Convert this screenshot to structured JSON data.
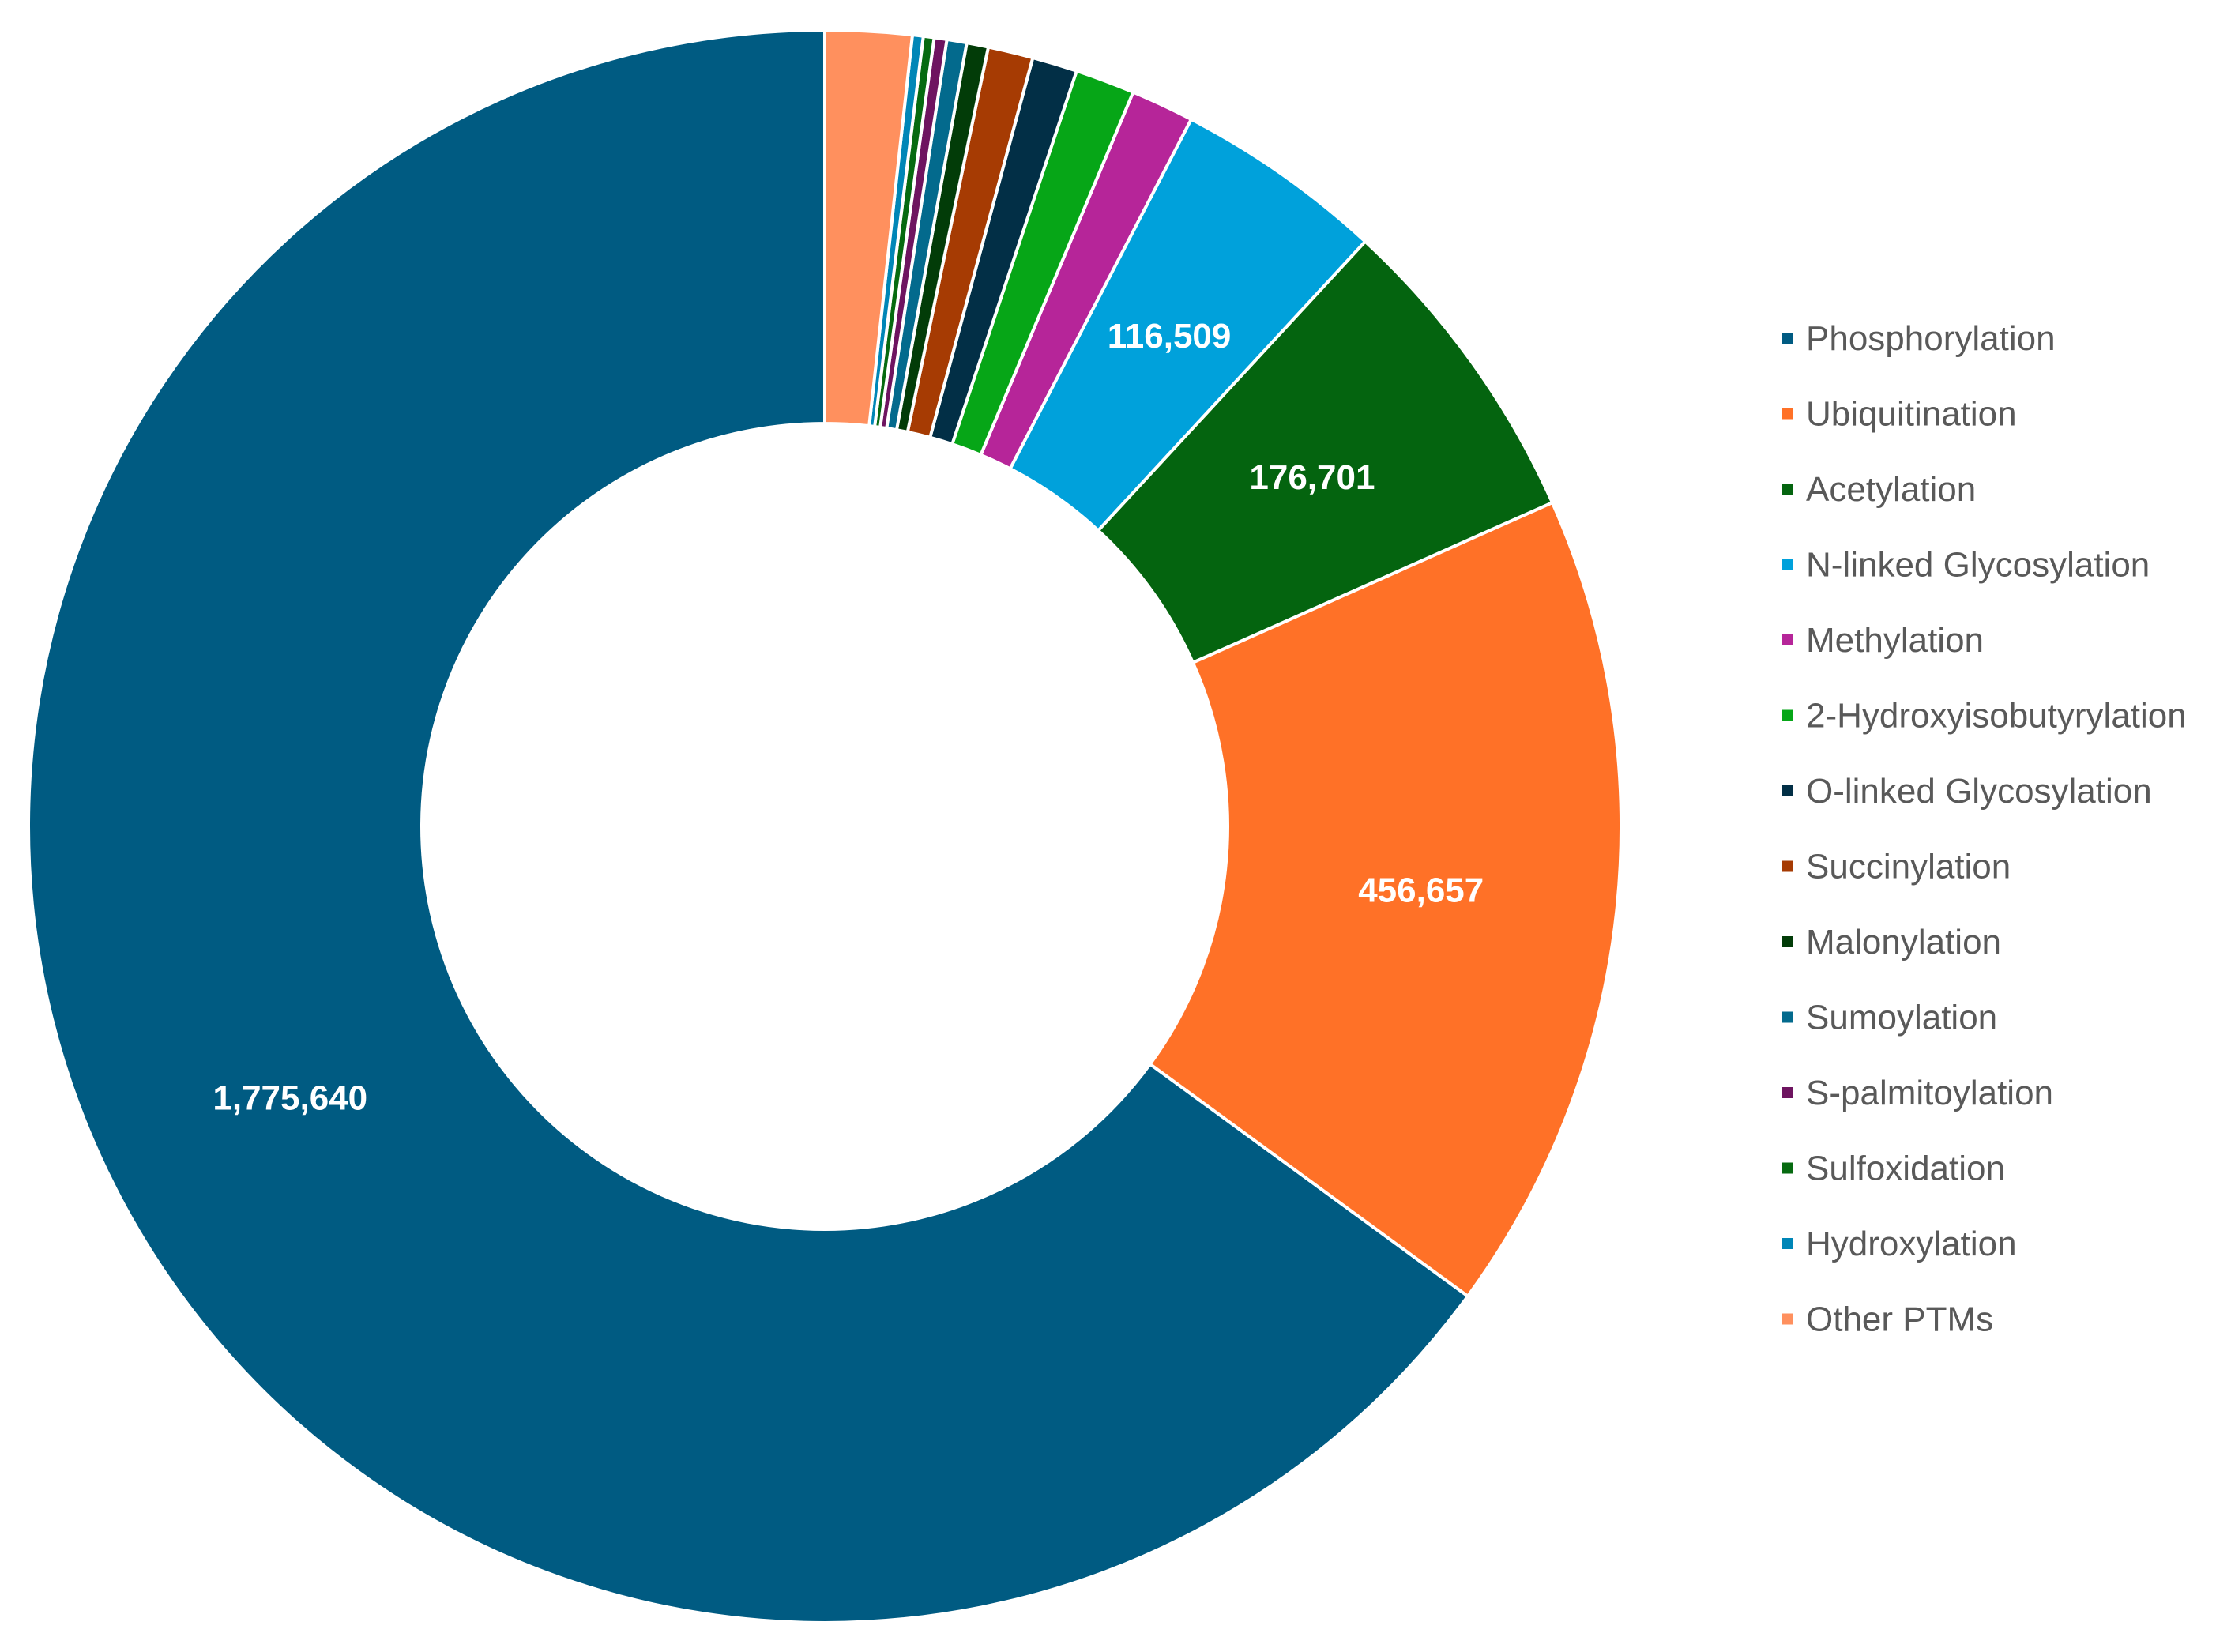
{
  "chart_data": {
    "type": "pie",
    "variant": "donut",
    "title": "",
    "categories": [
      "Phosphorylation",
      "Ubiquitination",
      "Acetylation",
      "N-linked Glycosylation",
      "Methylation",
      "2-Hydroxyisobutyrylation",
      "O-linked Glycosylation",
      "Succinylation",
      "Malonylation",
      "Sumoylation",
      "S-palmitoylation",
      "Sulfoxidation",
      "Hydroxylation",
      "Other PTMs"
    ],
    "values": [
      1775640,
      456657,
      176701,
      116509,
      35000,
      33000,
      25000,
      25000,
      12000,
      11000,
      7000,
      6000,
      6000,
      48000
    ],
    "data_labels": [
      "1,775,640",
      "456,657",
      "176,701",
      "116,509",
      null,
      null,
      null,
      null,
      null,
      null,
      null,
      null,
      null,
      null
    ],
    "colors": [
      "#005b82",
      "#ff7127",
      "#04640f",
      "#00a1db",
      "#b62599",
      "#06a617",
      "#022f46",
      "#a63b03",
      "#023c08",
      "#036a8d",
      "#6e1460",
      "#066a10",
      "#0086b7",
      "#ff905e"
    ],
    "start": "top (12 o'clock)",
    "direction": "counterclockwise",
    "legend_position": "right"
  }
}
